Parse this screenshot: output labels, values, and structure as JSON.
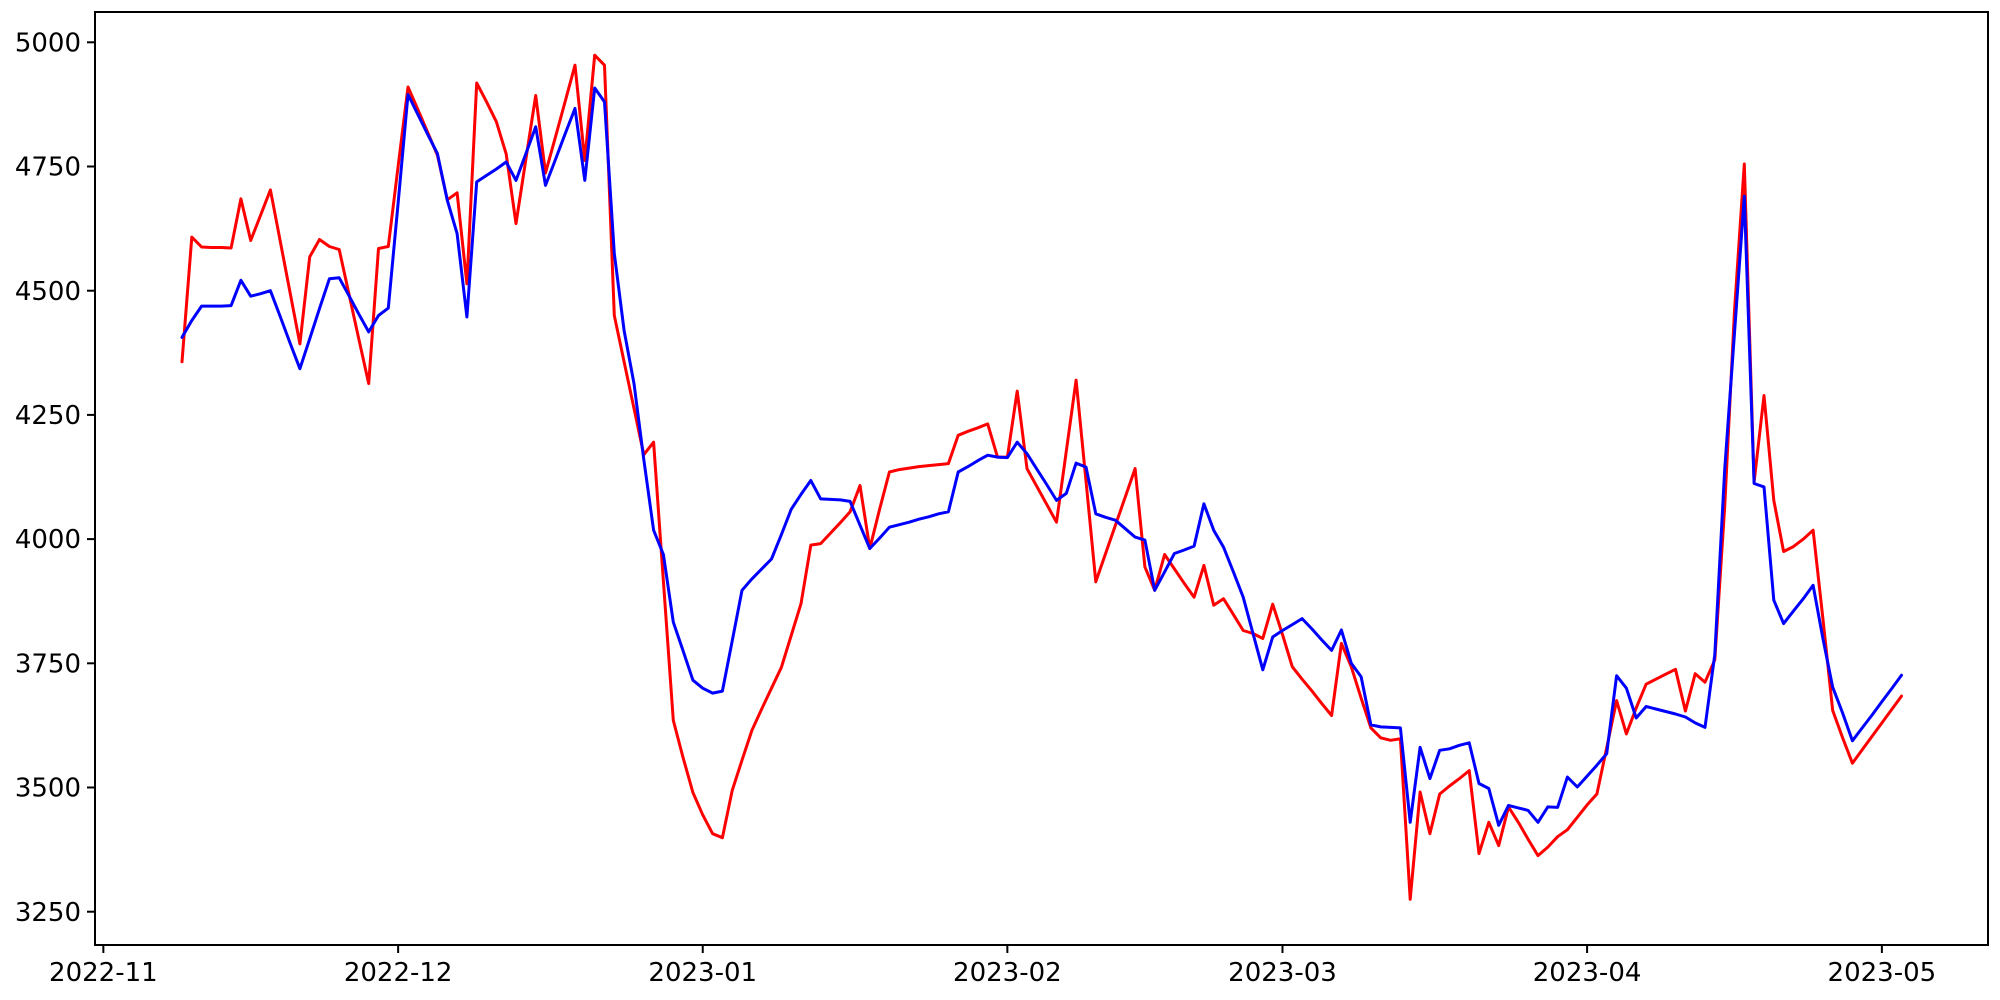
{
  "chart_data": {
    "type": "line",
    "title": "",
    "xlabel": "",
    "ylabel": "",
    "grid": false,
    "legend_position": "none",
    "background_color": "#ffffff",
    "spine_color": "#000000",
    "tick_label_color": "#000000",
    "x_axis": {
      "epoch": "2022-11-01",
      "xlim_days": [
        -0.85,
        191.8
      ],
      "tick_dates": [
        "2022-11-01",
        "2022-12-01",
        "2023-01-01",
        "2023-02-01",
        "2023-03-01",
        "2023-04-01",
        "2023-05-01"
      ],
      "tick_labels": [
        "2022-11",
        "2022-12",
        "2023-01",
        "2023-02",
        "2023-03",
        "2023-04",
        "2023-05"
      ]
    },
    "y_axis": {
      "ylim": [
        3183,
        5061
      ],
      "ticks": [
        3250,
        3500,
        3750,
        4000,
        4250,
        4500,
        4750,
        5000
      ]
    },
    "series": [
      {
        "name": "red-line",
        "color": "#ff0000",
        "line_width": 3,
        "start_date": "2022-11-09",
        "frequency": "daily",
        "values": [
          4357,
          4608,
          4588,
          4587,
          4587,
          4586,
          4685,
          4601,
          4652,
          4703,
          4600,
          4497,
          4393,
          4568,
          4603,
          4589,
          4583,
          4493,
          4403,
          4313,
          4585,
          4589,
          4750,
          4910,
          4865,
          4819,
          4773,
          4683,
          4697,
          4514,
          4918,
          4880,
          4840,
          4775,
          4635,
          4765,
          4893,
          4737,
          4809,
          4881,
          4954,
          4762,
          4974,
          4954,
          4450,
          4357,
          4263,
          4170,
          4195,
          3915,
          3635,
          3560,
          3490,
          3445,
          3407,
          3399,
          3494,
          3555,
          3615,
          3658,
          3700,
          3742,
          3806,
          3870,
          3988,
          3991,
          4012,
          4033,
          4055,
          4108,
          3981,
          4060,
          4135,
          4140,
          4143,
          4146,
          4148,
          4150,
          4152,
          4209,
          4217,
          4224,
          4232,
          4165,
          4165,
          4298,
          4142,
          4106,
          4070,
          4034,
          4177,
          4320,
          4117,
          3914,
          3971,
          4028,
          4085,
          4142,
          3944,
          3897,
          3969,
          3940,
          3911,
          3883,
          3947,
          3867,
          3880,
          3848,
          3816,
          3810,
          3800,
          3869,
          3808,
          3743,
          3718,
          3694,
          3669,
          3645,
          3790,
          3743,
          3680,
          3620,
          3600,
          3595,
          3598,
          3275,
          3491,
          3407,
          3487,
          3503,
          3518,
          3534,
          3367,
          3430,
          3383,
          3461,
          3430,
          3396,
          3363,
          3380,
          3401,
          3415,
          3440,
          3465,
          3487,
          3580,
          3675,
          3608,
          3660,
          3708,
          3718,
          3728,
          3738,
          3654,
          3729,
          3712,
          3757,
          4065,
          4460,
          4755,
          4115,
          4289,
          4078,
          3975,
          3985,
          4000,
          4018,
          3840,
          3655,
          3600,
          3549,
          3576,
          3603,
          3630,
          3657,
          3684
        ]
      },
      {
        "name": "blue-line",
        "color": "#0000ff",
        "line_width": 3,
        "start_date": "2022-11-09",
        "frequency": "daily",
        "values": [
          4406,
          4440,
          4469,
          4469,
          4469,
          4470,
          4521,
          4489,
          4494,
          4500,
          4448,
          4395,
          4343,
          4403,
          4464,
          4524,
          4526,
          4490,
          4453,
          4417,
          4450,
          4465,
          4676,
          4895,
          4855,
          4815,
          4776,
          4682,
          4615,
          4447,
          4719,
          4732,
          4745,
          4759,
          4722,
          4776,
          4830,
          4712,
          4764,
          4816,
          4867,
          4722,
          4908,
          4880,
          4575,
          4420,
          4313,
          4160,
          4018,
          3969,
          3833,
          3775,
          3716,
          3700,
          3690,
          3694,
          3795,
          3897,
          3920,
          3940,
          3960,
          4009,
          4060,
          4090,
          4118,
          4081,
          4080,
          4079,
          4076,
          4028,
          3981,
          4002,
          4024,
          4029,
          4034,
          4040,
          4045,
          4051,
          4055,
          4135,
          4146,
          4158,
          4169,
          4165,
          4164,
          4195,
          4172,
          4141,
          4110,
          4078,
          4092,
          4153,
          4145,
          4051,
          4044,
          4038,
          4021,
          4004,
          3998,
          3897,
          3934,
          3971,
          3978,
          3986,
          4071,
          4018,
          3984,
          3934,
          3883,
          3810,
          3737,
          3803,
          3816,
          3828,
          3840,
          3819,
          3797,
          3776,
          3817,
          3750,
          3723,
          3626,
          3622,
          3621,
          3620,
          3430,
          3581,
          3518,
          3575,
          3578,
          3585,
          3590,
          3508,
          3498,
          3424,
          3464,
          3459,
          3454,
          3430,
          3461,
          3460,
          3521,
          3501,
          3523,
          3545,
          3568,
          3725,
          3700,
          3640,
          3663,
          3658,
          3653,
          3648,
          3642,
          3630,
          3621,
          3768,
          4140,
          4415,
          4690,
          4112,
          4105,
          3877,
          3830,
          3855,
          3880,
          3907,
          3800,
          3702,
          3650,
          3594,
          3620,
          3646,
          3673,
          3699,
          3726
        ]
      }
    ]
  }
}
